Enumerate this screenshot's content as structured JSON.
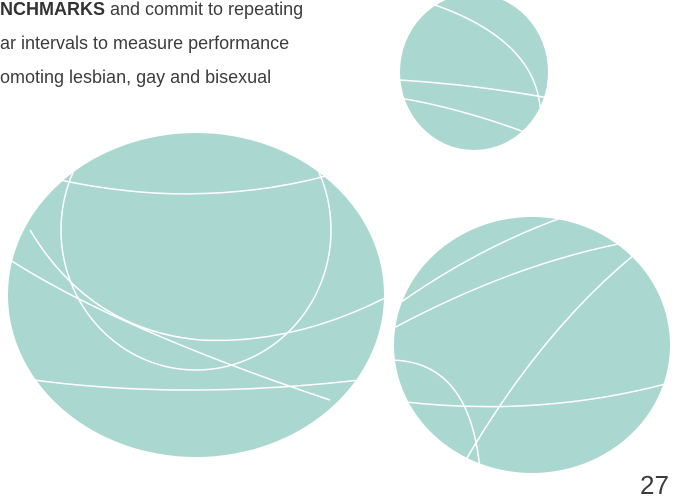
{
  "body": {
    "lines": [
      {
        "bold": "NCHMARKS",
        "text": " and commit to repeating"
      },
      {
        "text": "ar intervals to measure performance"
      },
      {
        "text": "omoting lesbian, gay and bisexual"
      }
    ]
  },
  "page_number": "27"
}
